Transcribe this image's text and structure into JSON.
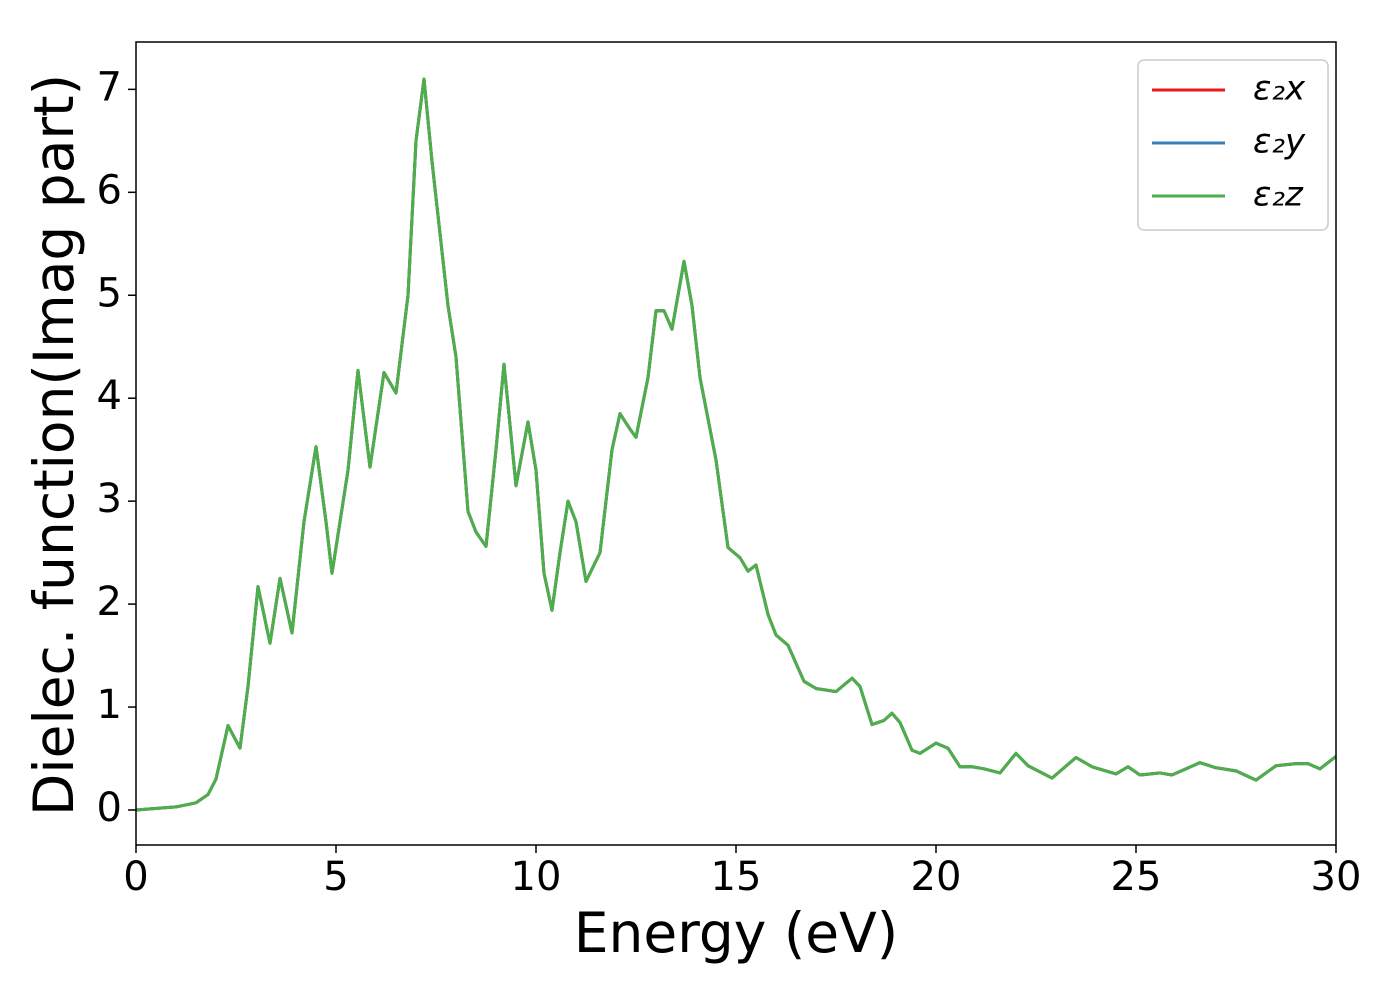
{
  "chart_data": {
    "type": "line",
    "xlabel": "Energy (eV)",
    "ylabel": "Dielec. function(Imag part)",
    "x": [
      0,
      1,
      1.5,
      1.8,
      2.0,
      2.3,
      2.6,
      2.8,
      3.05,
      3.35,
      3.6,
      3.9,
      4.2,
      4.5,
      4.75,
      4.9,
      5.1,
      5.3,
      5.55,
      5.85,
      6.2,
      6.5,
      6.8,
      7.0,
      7.2,
      7.4,
      7.6,
      7.8,
      8.0,
      8.3,
      8.5,
      8.75,
      9.0,
      9.2,
      9.5,
      9.8,
      10.0,
      10.2,
      10.4,
      10.6,
      10.8,
      11.0,
      11.25,
      11.6,
      11.9,
      12.1,
      12.35,
      12.5,
      12.8,
      13.0,
      13.2,
      13.4,
      13.7,
      13.9,
      14.1,
      14.5,
      14.8,
      15.1,
      15.3,
      15.5,
      15.8,
      16.0,
      16.3,
      16.7,
      17.0,
      17.5,
      17.9,
      18.1,
      18.4,
      18.7,
      18.9,
      19.1,
      19.4,
      19.6,
      20.0,
      20.3,
      20.6,
      20.9,
      21.2,
      21.6,
      22.0,
      22.3,
      22.9,
      23.5,
      23.9,
      24.5,
      24.8,
      25.1,
      25.6,
      25.9,
      26.6,
      27.0,
      27.5,
      28.0,
      28.5,
      29.0,
      29.3,
      29.6,
      30.0
    ],
    "series": [
      {
        "name": "ε₂x",
        "color": "#e41a1c",
        "values": [
          0.0,
          0.03,
          0.07,
          0.15,
          0.3,
          0.82,
          0.6,
          1.2,
          2.17,
          1.62,
          2.25,
          1.72,
          2.8,
          3.53,
          2.8,
          2.3,
          2.8,
          3.3,
          4.27,
          3.33,
          4.25,
          4.05,
          5.0,
          6.5,
          7.1,
          6.3,
          5.6,
          4.9,
          4.4,
          2.9,
          2.7,
          2.56,
          3.5,
          4.33,
          3.15,
          3.77,
          3.3,
          2.3,
          1.94,
          2.5,
          3.0,
          2.8,
          2.22,
          2.5,
          3.5,
          3.85,
          3.7,
          3.62,
          4.2,
          4.85,
          4.85,
          4.67,
          5.33,
          4.9,
          4.2,
          3.4,
          2.55,
          2.45,
          2.32,
          2.38,
          1.9,
          1.7,
          1.6,
          1.25,
          1.18,
          1.15,
          1.28,
          1.2,
          0.83,
          0.87,
          0.94,
          0.85,
          0.58,
          0.55,
          0.65,
          0.6,
          0.42,
          0.42,
          0.4,
          0.36,
          0.55,
          0.43,
          0.31,
          0.51,
          0.42,
          0.35,
          0.42,
          0.34,
          0.36,
          0.34,
          0.46,
          0.41,
          0.38,
          0.29,
          0.43,
          0.45,
          0.45,
          0.4,
          0.52
        ]
      },
      {
        "name": "ε₂y",
        "color": "#377eb8",
        "values": [
          0.0,
          0.03,
          0.07,
          0.15,
          0.3,
          0.82,
          0.6,
          1.2,
          2.17,
          1.62,
          2.25,
          1.72,
          2.8,
          3.53,
          2.8,
          2.3,
          2.8,
          3.3,
          4.27,
          3.33,
          4.25,
          4.05,
          5.0,
          6.5,
          7.1,
          6.3,
          5.6,
          4.9,
          4.4,
          2.9,
          2.7,
          2.56,
          3.5,
          4.33,
          3.15,
          3.77,
          3.3,
          2.3,
          1.94,
          2.5,
          3.0,
          2.8,
          2.22,
          2.5,
          3.5,
          3.85,
          3.7,
          3.62,
          4.2,
          4.85,
          4.85,
          4.67,
          5.33,
          4.9,
          4.2,
          3.4,
          2.55,
          2.45,
          2.32,
          2.38,
          1.9,
          1.7,
          1.6,
          1.25,
          1.18,
          1.15,
          1.28,
          1.2,
          0.83,
          0.87,
          0.94,
          0.85,
          0.58,
          0.55,
          0.65,
          0.6,
          0.42,
          0.42,
          0.4,
          0.36,
          0.55,
          0.43,
          0.31,
          0.51,
          0.42,
          0.35,
          0.42,
          0.34,
          0.36,
          0.34,
          0.46,
          0.41,
          0.38,
          0.29,
          0.43,
          0.45,
          0.45,
          0.4,
          0.52
        ]
      },
      {
        "name": "ε₂z",
        "color": "#4daf4a",
        "values": [
          0.0,
          0.03,
          0.07,
          0.15,
          0.3,
          0.82,
          0.6,
          1.2,
          2.17,
          1.62,
          2.25,
          1.72,
          2.8,
          3.53,
          2.8,
          2.3,
          2.8,
          3.3,
          4.27,
          3.33,
          4.25,
          4.05,
          5.0,
          6.5,
          7.1,
          6.3,
          5.6,
          4.9,
          4.4,
          2.9,
          2.7,
          2.56,
          3.5,
          4.33,
          3.15,
          3.77,
          3.3,
          2.3,
          1.94,
          2.5,
          3.0,
          2.8,
          2.22,
          2.5,
          3.5,
          3.85,
          3.7,
          3.62,
          4.2,
          4.85,
          4.85,
          4.67,
          5.33,
          4.9,
          4.2,
          3.4,
          2.55,
          2.45,
          2.32,
          2.38,
          1.9,
          1.7,
          1.6,
          1.25,
          1.18,
          1.15,
          1.28,
          1.2,
          0.83,
          0.87,
          0.94,
          0.85,
          0.58,
          0.55,
          0.65,
          0.6,
          0.42,
          0.42,
          0.4,
          0.36,
          0.55,
          0.43,
          0.31,
          0.51,
          0.42,
          0.35,
          0.42,
          0.34,
          0.36,
          0.34,
          0.46,
          0.41,
          0.38,
          0.29,
          0.43,
          0.45,
          0.45,
          0.4,
          0.52
        ]
      }
    ],
    "xlim": [
      0,
      30
    ],
    "xticks": [
      0,
      5,
      10,
      15,
      20,
      25,
      30
    ],
    "ylim": [
      -0.34,
      7.46
    ],
    "yticks": [
      0,
      1,
      2,
      3,
      4,
      5,
      6,
      7
    ],
    "grid": false,
    "legend": "upper right"
  }
}
